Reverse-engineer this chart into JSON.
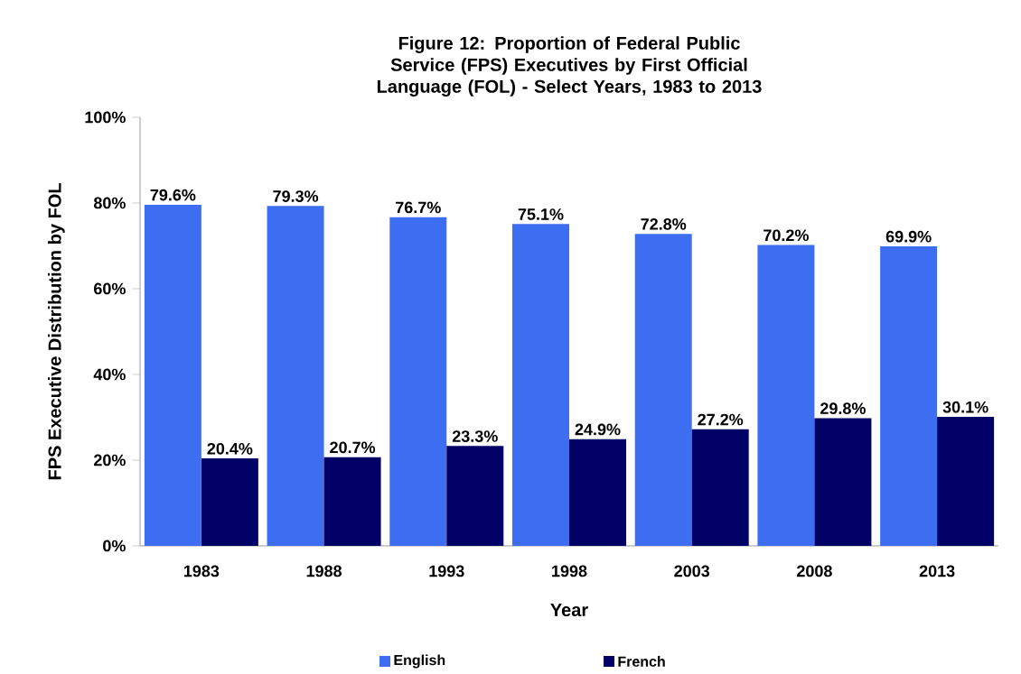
{
  "chart_data": {
    "type": "bar",
    "title": "Figure 12: Proportion of Federal Public Service (FPS) Executives by First Official Language (FOL) - Select Years, 1983 to 2013",
    "xlabel": "Year",
    "ylabel": "FPS Executive Distribution by FOL",
    "categories": [
      "1983",
      "1988",
      "1993",
      "1998",
      "2003",
      "2008",
      "2013"
    ],
    "series": [
      {
        "name": "English",
        "color": "#3d6ef2",
        "values": [
          79.6,
          79.3,
          76.7,
          75.1,
          72.8,
          70.2,
          69.9
        ],
        "value_labels": [
          "79.6%",
          "79.3%",
          "76.7%",
          "75.1%",
          "72.8%",
          "70.2%",
          "69.9%"
        ]
      },
      {
        "name": "French",
        "color": "#000066",
        "values": [
          20.4,
          20.7,
          23.3,
          24.9,
          27.2,
          29.8,
          30.1
        ],
        "value_labels": [
          "20.4%",
          "20.7%",
          "23.3%",
          "24.9%",
          "27.2%",
          "29.8%",
          "30.1%"
        ]
      }
    ],
    "ylim": [
      0,
      100
    ],
    "yticks": [
      {
        "value": 0,
        "label": "0%"
      },
      {
        "value": 20,
        "label": "20%"
      },
      {
        "value": 40,
        "label": "40%"
      },
      {
        "value": 60,
        "label": "60%"
      },
      {
        "value": 80,
        "label": "80%"
      },
      {
        "value": 100,
        "label": "100%"
      }
    ],
    "grid": false,
    "legend": "bottom"
  }
}
